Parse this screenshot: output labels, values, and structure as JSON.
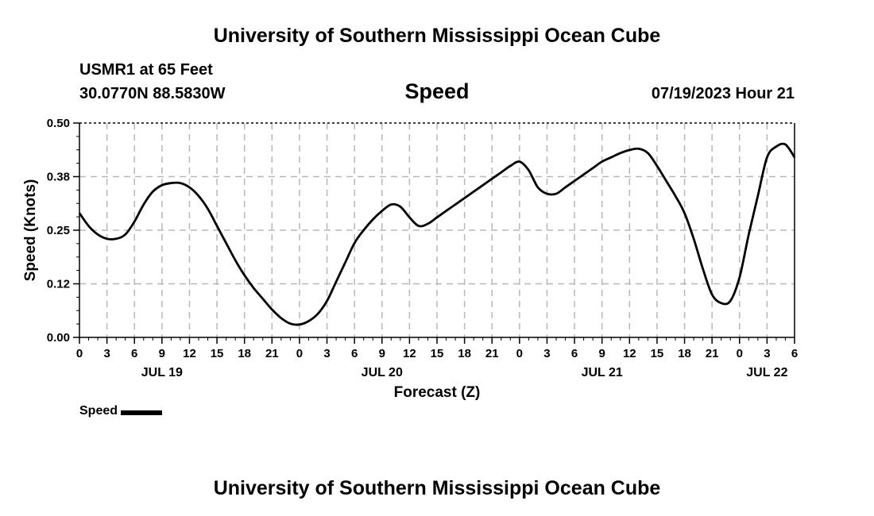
{
  "page": {
    "title_top": "University of Southern Mississippi Ocean Cube",
    "title_bottom": "University of Southern Mississippi Ocean Cube",
    "station": "USMR1 at 65 Feet",
    "coords": "30.0770N  88.5830W",
    "datetime": "07/19/2023 Hour 21"
  },
  "chart_data": {
    "type": "line",
    "title": "Speed",
    "xlabel": "Forecast (Z)",
    "ylabel": "Speed (Knots)",
    "xlim": [
      0,
      78
    ],
    "ylim": [
      0,
      0.5
    ],
    "yticks": [
      0.0,
      0.125,
      0.25,
      0.375,
      0.5
    ],
    "ytick_labels": [
      "0.00",
      "0.12",
      "0.25",
      "0.38",
      "0.50"
    ],
    "xtick_hours": [
      0,
      3,
      6,
      9,
      12,
      15,
      18,
      21,
      24,
      27,
      30,
      33,
      36,
      39,
      42,
      45,
      48,
      51,
      54,
      57,
      60,
      63,
      66,
      69,
      72,
      75,
      78
    ],
    "xtick_labels": [
      "0",
      "3",
      "6",
      "9",
      "12",
      "15",
      "18",
      "21",
      "0",
      "3",
      "6",
      "9",
      "12",
      "15",
      "18",
      "21",
      "0",
      "3",
      "6",
      "9",
      "12",
      "15",
      "18",
      "21",
      "0",
      "3",
      "6"
    ],
    "day_labels": [
      {
        "hour": 9,
        "label": "JUL 19"
      },
      {
        "hour": 33,
        "label": "JUL 20"
      },
      {
        "hour": 57,
        "label": "JUL 21"
      },
      {
        "hour": 75,
        "label": "JUL 22"
      }
    ],
    "grid": true,
    "series": [
      {
        "name": "Speed",
        "color": "#000000",
        "x": [
          0,
          1,
          2,
          3,
          4,
          5,
          6,
          7,
          8,
          9,
          10,
          11,
          12,
          13,
          14,
          15,
          16,
          17,
          18,
          19,
          20,
          21,
          22,
          23,
          24,
          25,
          26,
          27,
          28,
          29,
          30,
          31,
          32,
          33,
          34,
          35,
          36,
          37,
          38,
          39,
          40,
          41,
          42,
          43,
          44,
          45,
          46,
          47,
          48,
          49,
          50,
          51,
          52,
          53,
          54,
          55,
          56,
          57,
          58,
          59,
          60,
          61,
          62,
          63,
          64,
          65,
          66,
          67,
          68,
          69,
          70,
          71,
          72,
          73,
          74,
          75,
          76,
          77,
          78
        ],
        "values": [
          0.29,
          0.26,
          0.24,
          0.23,
          0.23,
          0.24,
          0.27,
          0.31,
          0.34,
          0.355,
          0.36,
          0.36,
          0.35,
          0.33,
          0.3,
          0.26,
          0.22,
          0.18,
          0.145,
          0.115,
          0.09,
          0.065,
          0.045,
          0.032,
          0.03,
          0.038,
          0.055,
          0.085,
          0.13,
          0.175,
          0.22,
          0.25,
          0.275,
          0.295,
          0.31,
          0.305,
          0.28,
          0.26,
          0.265,
          0.28,
          0.295,
          0.31,
          0.325,
          0.34,
          0.355,
          0.37,
          0.385,
          0.4,
          0.41,
          0.39,
          0.35,
          0.335,
          0.335,
          0.35,
          0.365,
          0.38,
          0.395,
          0.41,
          0.42,
          0.43,
          0.437,
          0.44,
          0.43,
          0.4,
          0.365,
          0.33,
          0.29,
          0.23,
          0.16,
          0.1,
          0.08,
          0.085,
          0.14,
          0.24,
          0.33,
          0.42,
          0.445,
          0.45,
          0.42
        ]
      }
    ],
    "legend": {
      "label": "Speed",
      "position": "bottom-left"
    }
  }
}
